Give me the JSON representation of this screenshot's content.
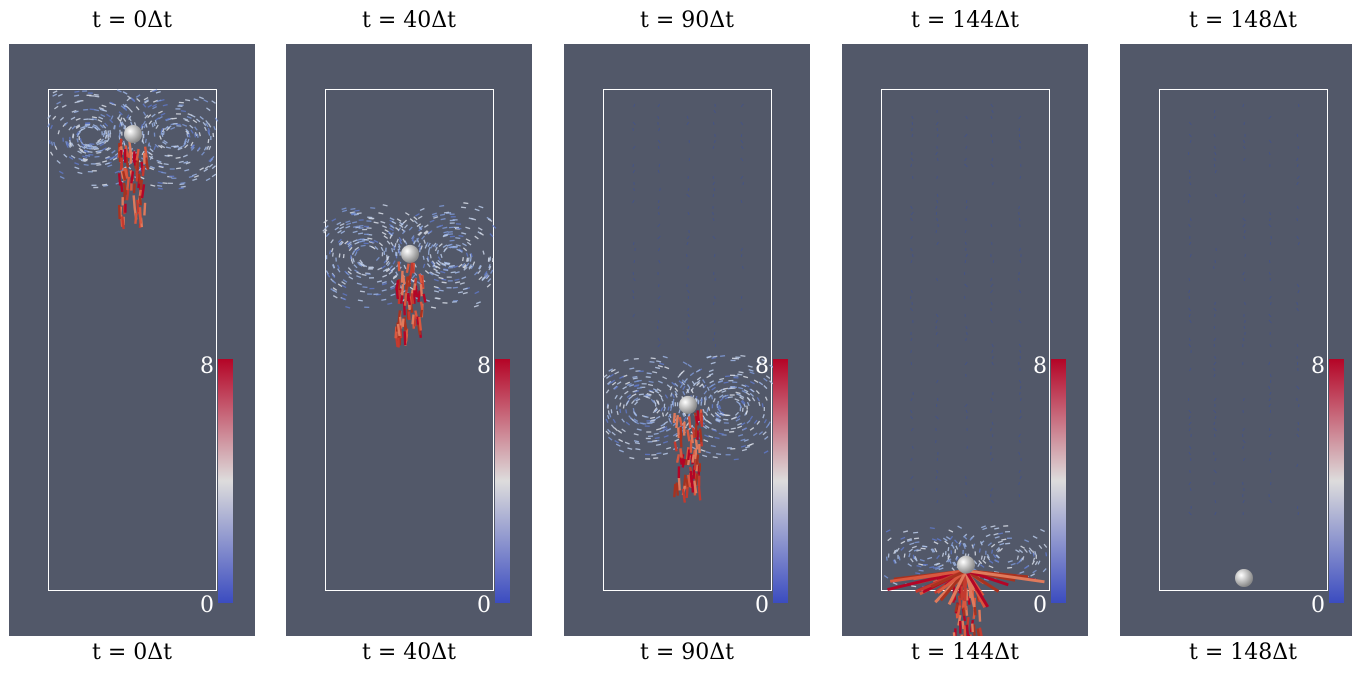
{
  "frames": [
    {
      "top_caption": "t = 0Δt",
      "bottom_caption": "t = 0Δt",
      "progress": 0.0
    },
    {
      "top_caption": "t = 40Δt",
      "bottom_caption": "t = 40Δt",
      "progress": 0.27
    },
    {
      "top_caption": "t = 90Δt",
      "bottom_caption": "t = 90Δt",
      "progress": 0.61
    },
    {
      "top_caption": "t = 144Δt",
      "bottom_caption": "t = 144Δt",
      "progress": 0.97
    },
    {
      "top_caption": "t = 148Δt",
      "bottom_caption": "t = 148Δt",
      "progress": 1.0
    }
  ],
  "colorbar": {
    "max_label": "8",
    "min_label": "0"
  },
  "colors": {
    "background": "#525869",
    "domain_outline": "#ffffff",
    "sphere": "#e6e6e6",
    "cmap_high": "#b40426",
    "cmap_mid": "#dddcdc",
    "cmap_low": "#3b4cc0"
  }
}
